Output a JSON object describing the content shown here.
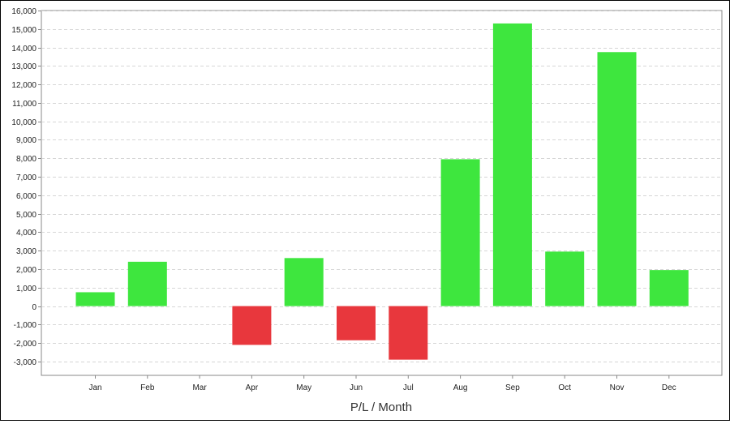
{
  "chart_data": {
    "type": "bar",
    "title": "",
    "xlabel": "P/L / Month",
    "ylabel": "",
    "categories": [
      "Jan",
      "Feb",
      "Mar",
      "Apr",
      "May",
      "Jun",
      "Jul",
      "Aug",
      "Sep",
      "Oct",
      "Nov",
      "Dec"
    ],
    "values": [
      750,
      2400,
      0,
      -2100,
      2600,
      -1850,
      -2900,
      7950,
      15300,
      2950,
      13750,
      1950
    ],
    "ylim": [
      -3750,
      16000
    ],
    "yticks": [
      16000,
      15000,
      14000,
      13000,
      12000,
      11000,
      10000,
      9000,
      8000,
      7000,
      6000,
      5000,
      4000,
      3000,
      2000,
      1000,
      0,
      -1000,
      -2000,
      -3000
    ],
    "ytick_labels": [
      "16,000",
      "15,000",
      "14,000",
      "13,000",
      "12,000",
      "11,000",
      "10,000",
      "9,000",
      "8,000",
      "7,000",
      "6,000",
      "5,000",
      "4,000",
      "3,000",
      "2,000",
      "1,000",
      "0",
      "-1,000",
      "-2,000",
      "-3,000"
    ],
    "grid": true,
    "legend": "none",
    "colors": {
      "positive": "#3ee63e",
      "negative": "#e8373d",
      "grid": "#d6d6d6",
      "axis": "#888888"
    }
  }
}
